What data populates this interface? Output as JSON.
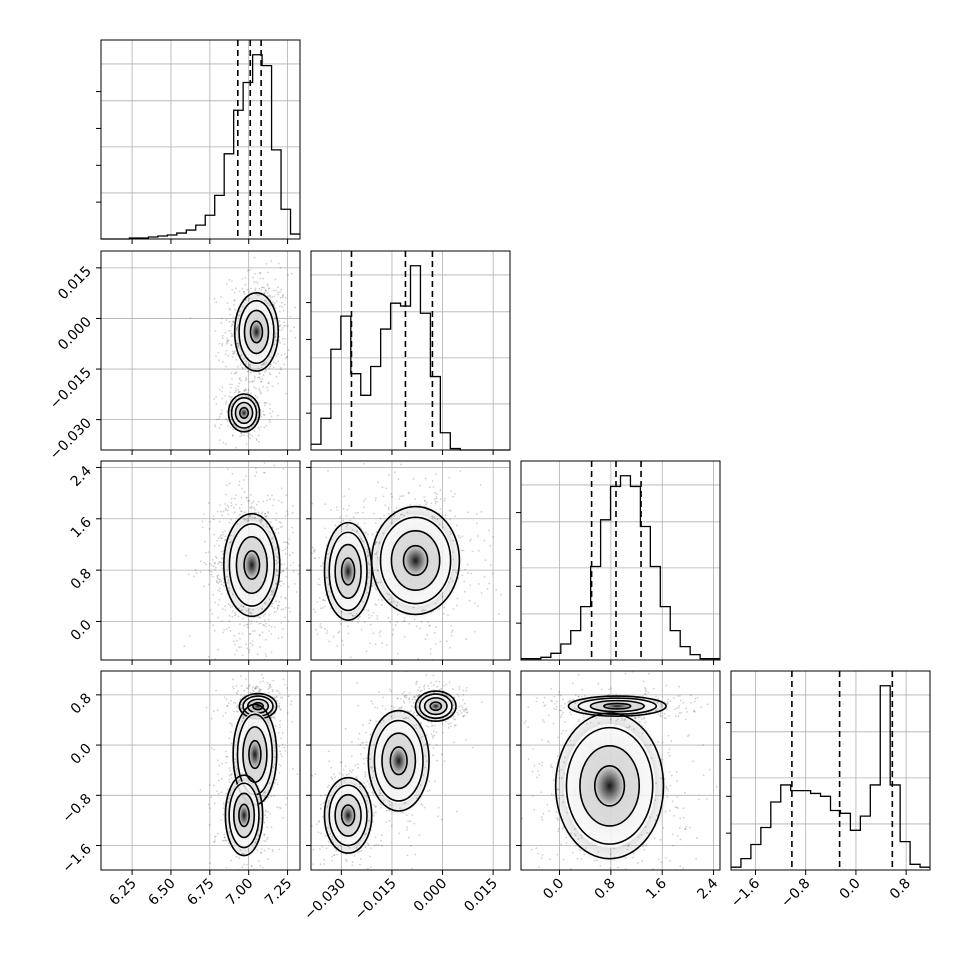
{
  "chart_data": {
    "type": "corner",
    "title": "",
    "grid": true,
    "parameters": [
      {
        "label": "",
        "range": [
          6.05,
          7.33
        ],
        "ticks": [
          6.25,
          6.5,
          6.75,
          7.0,
          7.25
        ],
        "tick_labels": [
          "6.25",
          "6.50",
          "6.75",
          "7.00",
          "7.25"
        ],
        "quantiles": [
          6.93,
          7.01,
          7.08
        ]
      },
      {
        "label": "",
        "range": [
          -0.039,
          0.02
        ],
        "ticks": [
          -0.03,
          -0.015,
          0.0,
          0.015
        ],
        "tick_labels": [
          "−0.030",
          "−0.015",
          "0.000",
          "0.015"
        ],
        "quantiles": [
          -0.027,
          -0.011,
          -0.003
        ]
      },
      {
        "label": "",
        "range": [
          -0.6,
          2.5
        ],
        "ticks": [
          0.0,
          0.8,
          1.6,
          2.4
        ],
        "tick_labels": [
          "0.0",
          "0.8",
          "1.6",
          "2.4"
        ],
        "quantiles": [
          0.5,
          0.88,
          1.27
        ]
      },
      {
        "label": "",
        "range": [
          -1.99,
          1.18
        ],
        "ticks": [
          -1.6,
          -0.8,
          0.0,
          0.8
        ],
        "tick_labels": [
          "−1.6",
          "−0.8",
          "0.0",
          "0.8"
        ],
        "quantiles": [
          -1.02,
          -0.26,
          0.58
        ]
      }
    ],
    "histograms": [
      {
        "param": 0,
        "edges_range": [
          6.05,
          7.33
        ],
        "counts": [
          0,
          0,
          0,
          1,
          1,
          2,
          3,
          4,
          6,
          9,
          14,
          24,
          44,
          86,
          130,
          158,
          186,
          175,
          90,
          30,
          5
        ]
      },
      {
        "param": 1,
        "edges_range": [
          -0.039,
          0.02
        ],
        "counts": [
          4,
          22,
          70,
          93,
          53,
          38,
          58,
          84,
          102,
          100,
          128,
          95,
          51,
          12,
          1,
          0,
          0,
          0,
          0,
          0
        ]
      },
      {
        "param": 2,
        "edges_range": [
          -0.6,
          2.5
        ],
        "counts": [
          1,
          1,
          2,
          5,
          12,
          22,
          40,
          70,
          105,
          130,
          138,
          130,
          100,
          70,
          40,
          22,
          10,
          4,
          1,
          1
        ]
      },
      {
        "param": 3,
        "edges_range": [
          -1.99,
          1.18
        ],
        "counts": [
          1,
          4,
          9,
          15,
          24,
          30,
          28,
          28,
          27,
          26,
          21,
          20,
          14,
          19,
          30,
          65,
          30,
          10,
          2,
          1
        ]
      }
    ],
    "quantile_levels": [
      0.16,
      0.5,
      0.84
    ],
    "joint_modes": [
      {
        "x_param": 0,
        "y_param": 1,
        "modes": [
          {
            "x": 7.05,
            "y": -0.004,
            "sx": 0.07,
            "sy": 0.0058,
            "w": 0.67
          },
          {
            "x": 6.97,
            "y": -0.028,
            "sx": 0.05,
            "sy": 0.0028,
            "w": 0.33
          }
        ]
      },
      {
        "x_param": 0,
        "y_param": 2,
        "modes": [
          {
            "x": 7.02,
            "y": 0.88,
            "sx": 0.09,
            "sy": 0.4,
            "w": 1.0
          }
        ]
      },
      {
        "x_param": 1,
        "y_param": 2,
        "modes": [
          {
            "x": -0.028,
            "y": 0.78,
            "sx": 0.0035,
            "sy": 0.38,
            "w": 0.33
          },
          {
            "x": -0.008,
            "y": 0.95,
            "sx": 0.0065,
            "sy": 0.42,
            "w": 0.67
          }
        ]
      },
      {
        "x_param": 0,
        "y_param": 3,
        "modes": [
          {
            "x": 7.06,
            "y": 0.62,
            "sx": 0.06,
            "sy": 0.1,
            "w": 0.32
          },
          {
            "x": 7.04,
            "y": -0.15,
            "sx": 0.07,
            "sy": 0.4,
            "w": 0.35
          },
          {
            "x": 6.97,
            "y": -1.12,
            "sx": 0.06,
            "sy": 0.32,
            "w": 0.33
          }
        ]
      },
      {
        "x_param": 1,
        "y_param": 3,
        "modes": [
          {
            "x": -0.002,
            "y": 0.62,
            "sx": 0.003,
            "sy": 0.12,
            "w": 0.32
          },
          {
            "x": -0.013,
            "y": -0.25,
            "sx": 0.0045,
            "sy": 0.4,
            "w": 0.35
          },
          {
            "x": -0.028,
            "y": -1.12,
            "sx": 0.0035,
            "sy": 0.3,
            "w": 0.33
          }
        ]
      },
      {
        "x_param": 2,
        "y_param": 3,
        "modes": [
          {
            "x": 0.9,
            "y": 0.62,
            "sx": 0.38,
            "sy": 0.08,
            "w": 0.32
          },
          {
            "x": 0.78,
            "y": -0.65,
            "sx": 0.42,
            "sy": 0.58,
            "w": 0.68
          }
        ]
      }
    ]
  }
}
